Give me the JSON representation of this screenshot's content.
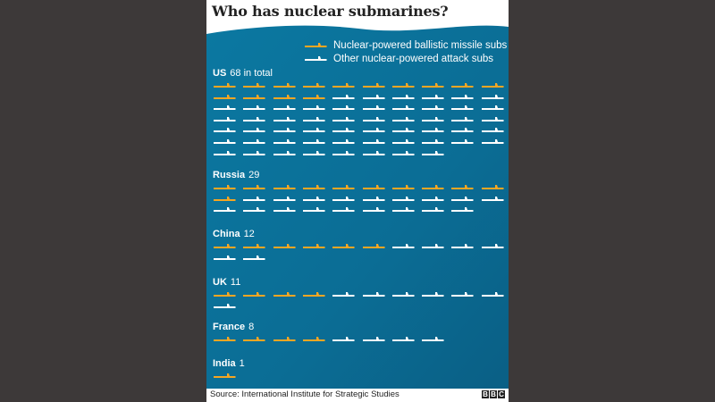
{
  "title": "Who has nuclear submarines?",
  "source": "Source: International Institute for Strategic Studies",
  "logo": "BBC",
  "colors": {
    "ballistic": "#f5a623",
    "attack": "#ffffff",
    "sea": "#0f7fa6",
    "sea_dark": "#0a6388"
  },
  "legend": {
    "ballistic": "Nuclear-powered ballistic missile subs",
    "attack": "Other nuclear-powered attack subs"
  },
  "chart_data": {
    "type": "pictogram",
    "title": "Who has nuclear submarines?",
    "unit": "1 icon = 1 submarine",
    "series_names": [
      "Nuclear-powered ballistic missile subs",
      "Other nuclear-powered attack subs"
    ],
    "countries": [
      {
        "name": "US",
        "total_label": "68 in total",
        "total": 68,
        "ballistic": 14,
        "attack": 54
      },
      {
        "name": "Russia",
        "total_label": "29",
        "total": 29,
        "ballistic": 11,
        "attack": 18
      },
      {
        "name": "China",
        "total_label": "12",
        "total": 12,
        "ballistic": 6,
        "attack": 6
      },
      {
        "name": "UK",
        "total_label": "11",
        "total": 11,
        "ballistic": 4,
        "attack": 7
      },
      {
        "name": "France",
        "total_label": "8",
        "total": 8,
        "ballistic": 4,
        "attack": 4
      },
      {
        "name": "India",
        "total_label": "1",
        "total": 1,
        "ballistic": 1,
        "attack": 0
      }
    ]
  }
}
